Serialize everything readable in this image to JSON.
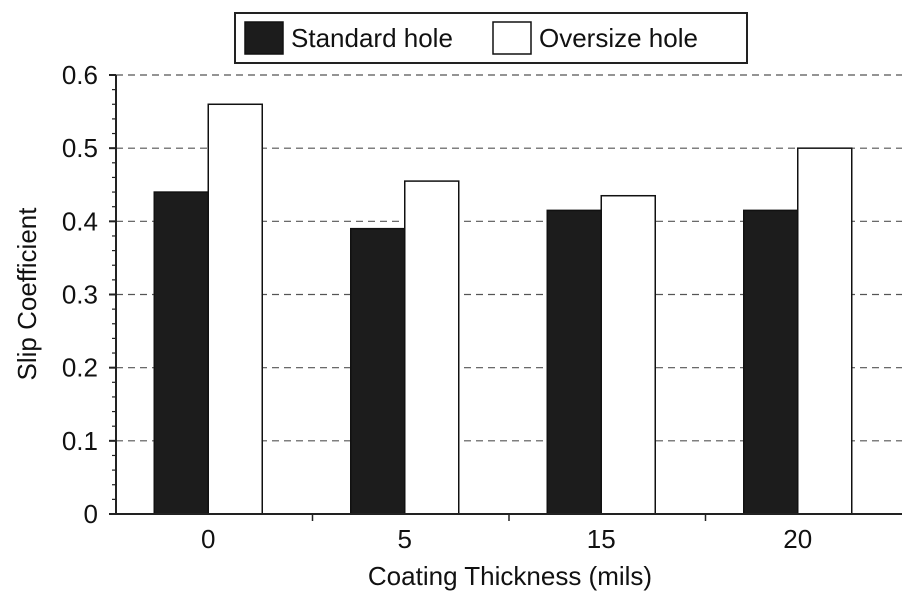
{
  "chart_data": {
    "type": "bar",
    "title": "",
    "xlabel": "Coating Thickness (mils)",
    "ylabel": "Slip Coefficient",
    "categories": [
      "0",
      "5",
      "15",
      "20"
    ],
    "series": [
      {
        "name": "Standard hole",
        "values": [
          0.44,
          0.39,
          0.415,
          0.415
        ],
        "color": "#1c1c1c"
      },
      {
        "name": "Oversize hole",
        "values": [
          0.56,
          0.455,
          0.435,
          0.5
        ],
        "color": "#ffffff"
      }
    ],
    "ylim": [
      0,
      0.6
    ],
    "yticks": [
      "0",
      "0.1",
      "0.2",
      "0.3",
      "0.4",
      "0.5",
      "0.6"
    ],
    "grid": true,
    "legend_position": "top-center"
  }
}
